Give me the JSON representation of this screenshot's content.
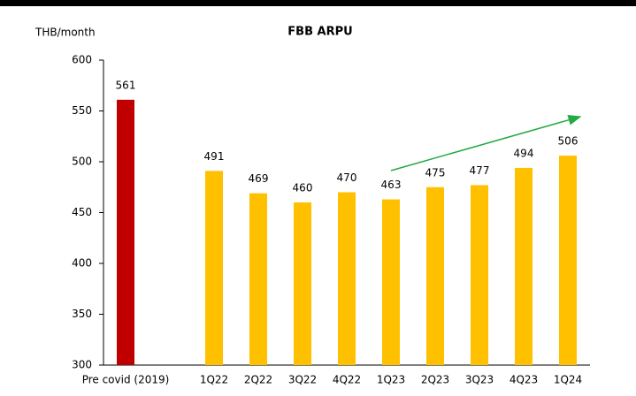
{
  "chart_data": {
    "type": "bar",
    "title": "FBB ARPU",
    "y_label": "THB/month",
    "categories": [
      "Pre covid (2019)",
      null,
      "1Q22",
      "2Q22",
      "3Q22",
      "4Q22",
      "1Q23",
      "2Q23",
      "3Q23",
      "4Q23",
      "1Q24"
    ],
    "values": [
      561,
      null,
      491,
      469,
      460,
      470,
      463,
      475,
      477,
      494,
      506
    ],
    "colors": [
      "#c00000",
      null,
      "#ffc000",
      "#ffc000",
      "#ffc000",
      "#ffc000",
      "#ffc000",
      "#ffc000",
      "#ffc000",
      "#ffc000",
      "#ffc000"
    ],
    "ylim": [
      300,
      600
    ],
    "yticks": [
      300,
      350,
      400,
      450,
      500,
      550,
      600
    ],
    "grid": false
  }
}
